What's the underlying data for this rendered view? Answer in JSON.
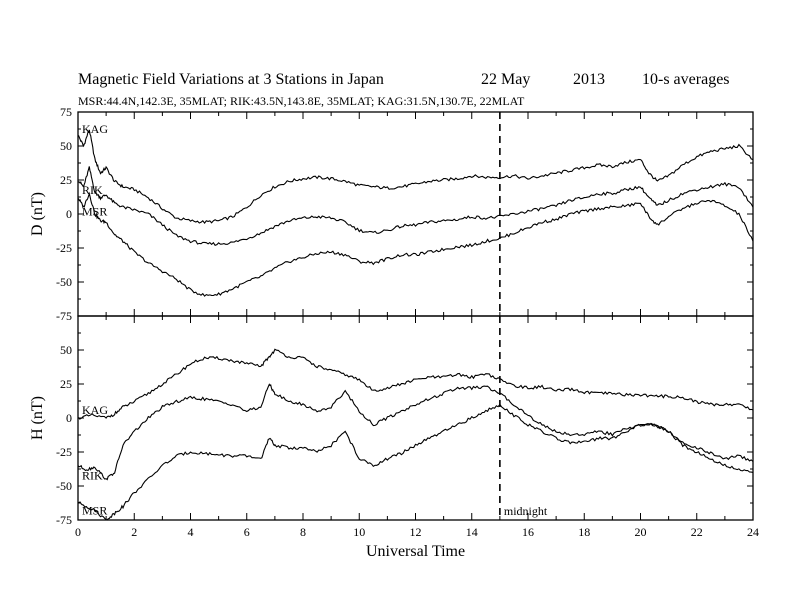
{
  "chart_data": {
    "type": "line",
    "title": {
      "main": "Magnetic Field Variations at 3 Stations in Japan",
      "date": "22 May",
      "year": "2013",
      "note": "10-s averages"
    },
    "subtitle": "MSR:44.4N,142.3E, 35MLAT;  RIK:43.5N,143.8E, 35MLAT;  KAG:31.5N,130.7E, 22MLAT",
    "xlabel": "Universal Time",
    "xlim": [
      0,
      24
    ],
    "x_ticks": [
      "0",
      "2",
      "4",
      "6",
      "8",
      "10",
      "12",
      "14",
      "16",
      "18",
      "20",
      "22",
      "24"
    ],
    "midnight": {
      "x": 15,
      "label": "midnight"
    },
    "panels": [
      {
        "ylabel": "D (nT)",
        "ylim": [
          -75,
          75
        ],
        "y_ticks": [
          "75",
          "50",
          "25",
          "0",
          "-25",
          "-50",
          "-75"
        ],
        "series": [
          {
            "name": "KAG",
            "x": [
              0,
              0.2,
              0.4,
              0.6,
              0.8,
              1,
              1.3,
              1.6,
              2,
              2.5,
              3,
              3.5,
              4,
              4.5,
              5,
              5.5,
              6,
              6.5,
              7,
              7.5,
              8,
              8.5,
              9,
              9.5,
              10,
              10.5,
              11,
              11.5,
              12,
              12.5,
              13,
              13.5,
              14,
              14.5,
              15,
              15.5,
              16,
              16.5,
              17,
              17.5,
              18,
              18.5,
              19,
              19.5,
              20,
              20.3,
              20.6,
              21,
              21.5,
              22,
              22.5,
              23,
              23.5,
              24
            ],
            "y": [
              58,
              50,
              62,
              40,
              30,
              34,
              24,
              20,
              18,
              12,
              4,
              -3,
              -5,
              -6,
              -5,
              -2,
              5,
              14,
              20,
              24,
              26,
              27,
              26,
              24,
              21,
              20,
              19,
              20,
              22,
              24,
              25,
              26,
              28,
              27,
              27,
              28,
              26,
              28,
              30,
              32,
              34,
              36,
              35,
              38,
              40,
              30,
              24,
              28,
              36,
              42,
              46,
              48,
              50,
              40
            ]
          },
          {
            "name": "RIK",
            "x": [
              0,
              0.2,
              0.4,
              0.6,
              0.8,
              1,
              1.3,
              1.6,
              2,
              2.5,
              3,
              3.5,
              4,
              4.5,
              5,
              5.5,
              6,
              6.5,
              7,
              7.5,
              8,
              8.5,
              9,
              9.5,
              10,
              10.5,
              11,
              11.5,
              12,
              12.5,
              13,
              13.5,
              14,
              14.5,
              15,
              15.5,
              16,
              16.5,
              17,
              17.5,
              18,
              18.5,
              19,
              19.5,
              20,
              20.3,
              20.6,
              21,
              21.5,
              22,
              22.5,
              23,
              23.5,
              24
            ],
            "y": [
              25,
              20,
              34,
              16,
              12,
              14,
              8,
              5,
              3,
              0,
              -8,
              -16,
              -20,
              -22,
              -22,
              -21,
              -18,
              -14,
              -9,
              -5,
              -3,
              -2,
              -3,
              -6,
              -12,
              -14,
              -12,
              -9,
              -8,
              -6,
              -5,
              -4,
              -2,
              -3,
              -2,
              0,
              2,
              4,
              6,
              10,
              12,
              15,
              15,
              18,
              20,
              12,
              6,
              10,
              15,
              18,
              20,
              22,
              20,
              5
            ]
          },
          {
            "name": "MSR",
            "x": [
              0,
              0.2,
              0.4,
              0.6,
              0.8,
              1,
              1.3,
              1.6,
              2,
              2.5,
              3,
              3.5,
              4,
              4.5,
              5,
              5.5,
              6,
              6.5,
              7,
              7.5,
              8,
              8.5,
              9,
              9.5,
              10,
              10.5,
              11,
              11.5,
              12,
              12.5,
              13,
              13.5,
              14,
              14.5,
              15,
              15.5,
              16,
              16.5,
              17,
              17.5,
              18,
              18.5,
              19,
              19.5,
              20,
              20.3,
              20.6,
              21,
              21.5,
              22,
              22.5,
              23,
              23.5,
              24
            ],
            "y": [
              12,
              5,
              15,
              0,
              -5,
              -6,
              -15,
              -20,
              -28,
              -36,
              -42,
              -48,
              -56,
              -60,
              -59,
              -55,
              -50,
              -46,
              -40,
              -35,
              -32,
              -29,
              -28,
              -30,
              -35,
              -36,
              -33,
              -30,
              -30,
              -28,
              -26,
              -24,
              -23,
              -20,
              -18,
              -14,
              -10,
              -6,
              -4,
              0,
              2,
              4,
              5,
              6,
              8,
              -2,
              -8,
              -2,
              4,
              8,
              10,
              6,
              0,
              -20
            ]
          }
        ]
      },
      {
        "ylabel": "H (nT)",
        "ylim": [
          -75,
          75
        ],
        "y_ticks": [
          "75",
          "50",
          "25",
          "0",
          "-25",
          "-50",
          "-75"
        ],
        "series": [
          {
            "name": "KAG",
            "x": [
              0,
              0.5,
              1,
              1.3,
              1.6,
              2,
              2.5,
              3,
              3.5,
              4,
              4.5,
              5,
              5.5,
              6,
              6.5,
              6.8,
              7,
              7.5,
              8,
              8.5,
              9,
              9.5,
              10,
              10.5,
              11,
              11.5,
              12,
              12.5,
              13,
              13.5,
              14,
              14.5,
              15,
              15.5,
              16,
              16.5,
              17,
              17.5,
              18,
              18.5,
              19,
              19.5,
              20,
              20.5,
              21,
              21.5,
              22,
              22.5,
              23,
              23.5,
              24
            ],
            "y": [
              0,
              2,
              0,
              3,
              8,
              12,
              18,
              25,
              32,
              40,
              44,
              44,
              42,
              40,
              38,
              45,
              50,
              45,
              44,
              38,
              35,
              32,
              28,
              20,
              22,
              25,
              28,
              30,
              30,
              32,
              30,
              33,
              28,
              24,
              22,
              23,
              20,
              21,
              19,
              18,
              18,
              17,
              17,
              16,
              16,
              15,
              12,
              10,
              10,
              10,
              6
            ]
          },
          {
            "name": "RIK",
            "x": [
              0,
              0.3,
              0.6,
              1,
              1.3,
              1.6,
              2,
              2.5,
              3,
              3.5,
              4,
              4.5,
              5,
              5.5,
              6,
              6.5,
              6.8,
              7,
              7.5,
              8,
              8.5,
              9,
              9.5,
              10,
              10.5,
              11,
              11.5,
              12,
              12.5,
              13,
              13.5,
              14,
              14.5,
              15,
              15.5,
              16,
              16.5,
              17,
              17.5,
              18,
              18.5,
              19,
              19.5,
              20,
              20.5,
              21,
              21.5,
              22,
              22.5,
              23,
              23.5,
              24
            ],
            "y": [
              -35,
              -38,
              -36,
              -45,
              -40,
              -20,
              -10,
              0,
              8,
              12,
              15,
              14,
              12,
              10,
              5,
              8,
              25,
              18,
              12,
              10,
              5,
              8,
              20,
              5,
              -5,
              0,
              5,
              10,
              14,
              18,
              22,
              22,
              23,
              18,
              10,
              2,
              -5,
              -10,
              -12,
              -12,
              -10,
              -12,
              -8,
              -5,
              -5,
              -10,
              -18,
              -22,
              -26,
              -30,
              -28,
              -32
            ]
          },
          {
            "name": "MSR",
            "x": [
              0,
              0.3,
              0.6,
              1,
              1.3,
              1.6,
              2,
              2.5,
              3,
              3.5,
              4,
              4.5,
              5,
              5.5,
              6,
              6.5,
              6.8,
              7,
              7.5,
              8,
              8.5,
              9,
              9.5,
              10,
              10.5,
              11,
              11.5,
              12,
              12.5,
              13,
              13.5,
              14,
              14.5,
              15,
              15.5,
              16,
              16.5,
              17,
              17.5,
              18,
              18.5,
              19,
              19.5,
              20,
              20.5,
              21,
              21.5,
              22,
              22.5,
              23,
              23.5,
              24
            ],
            "y": [
              -62,
              -65,
              -68,
              -75,
              -70,
              -65,
              -55,
              -45,
              -35,
              -28,
              -25,
              -26,
              -27,
              -28,
              -28,
              -30,
              -15,
              -20,
              -22,
              -22,
              -25,
              -20,
              -10,
              -30,
              -35,
              -30,
              -26,
              -20,
              -15,
              -10,
              -5,
              0,
              5,
              10,
              2,
              -5,
              -10,
              -15,
              -18,
              -18,
              -15,
              -15,
              -10,
              -5,
              -5,
              -10,
              -20,
              -25,
              -30,
              -35,
              -38,
              -40
            ]
          }
        ]
      }
    ]
  }
}
